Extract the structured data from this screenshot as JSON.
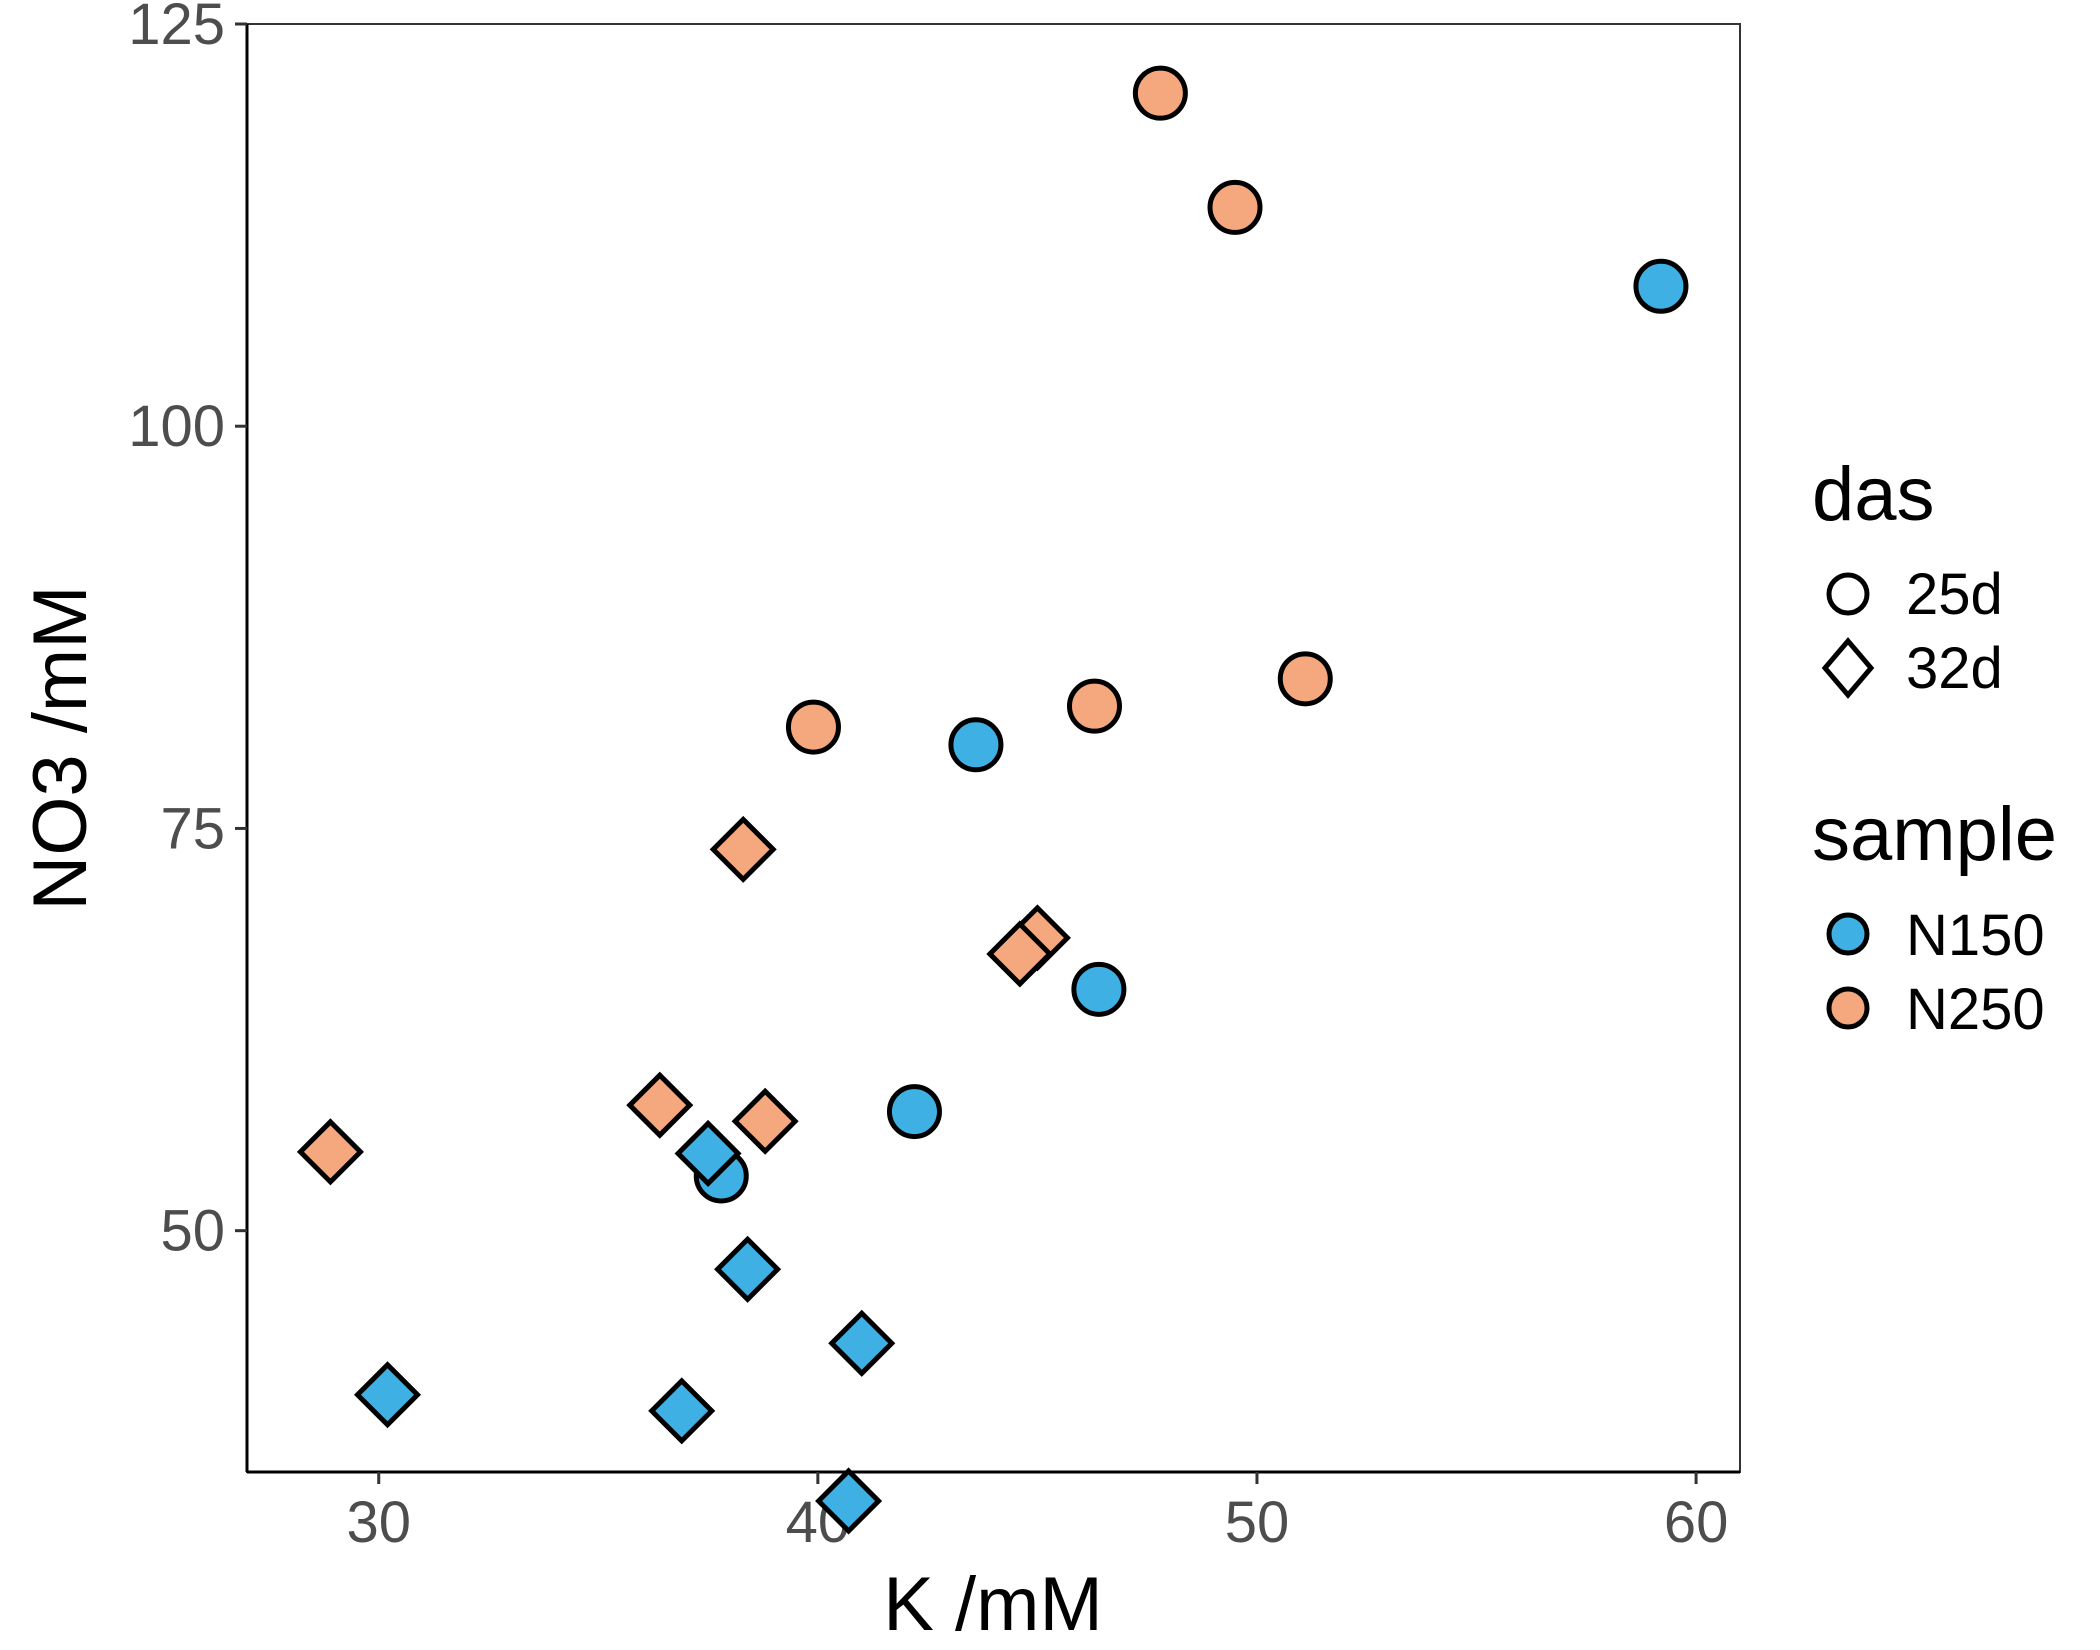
{
  "chart_data": {
    "type": "scatter",
    "xlabel": "K /mM",
    "ylabel": "NO3 /mM",
    "xlim": [
      27,
      61
    ],
    "ylim": [
      35,
      125
    ],
    "x_ticks": [
      30,
      40,
      50,
      60
    ],
    "y_ticks": [
      50,
      75,
      100,
      125
    ],
    "x_tick_labels": [
      "30",
      "40",
      "50",
      "60"
    ],
    "y_tick_labels": [
      "50",
      "75",
      "100",
      "125"
    ],
    "grid": false,
    "legend_placement": "right",
    "legend": {
      "das": {
        "title": "das",
        "entries": [
          {
            "label": "25d",
            "shape": "circle"
          },
          {
            "label": "32d",
            "shape": "diamond"
          }
        ]
      },
      "sample": {
        "title": "sample",
        "entries": [
          {
            "label": "N150",
            "color": "#3fb0e4"
          },
          {
            "label": "N250",
            "color": "#f5a87d"
          }
        ]
      }
    },
    "colors": {
      "N150": "#3fb0e4",
      "N250": "#f5a87d"
    },
    "points": [
      {
        "x": 47.8,
        "y": 120.7,
        "sample": "N250",
        "das": "25d"
      },
      {
        "x": 49.5,
        "y": 113.6,
        "sample": "N250",
        "das": "25d"
      },
      {
        "x": 59.2,
        "y": 108.7,
        "sample": "N150",
        "das": "25d"
      },
      {
        "x": 51.1,
        "y": 84.3,
        "sample": "N250",
        "das": "25d"
      },
      {
        "x": 46.3,
        "y": 82.6,
        "sample": "N250",
        "das": "25d"
      },
      {
        "x": 39.9,
        "y": 81.3,
        "sample": "N250",
        "das": "25d"
      },
      {
        "x": 43.6,
        "y": 80.2,
        "sample": "N150",
        "das": "25d"
      },
      {
        "x": 46.4,
        "y": 65.0,
        "sample": "N150",
        "das": "25d"
      },
      {
        "x": 42.2,
        "y": 57.4,
        "sample": "N150",
        "das": "25d"
      },
      {
        "x": 37.8,
        "y": 53.4,
        "sample": "N150",
        "das": "25d"
      },
      {
        "x": 38.3,
        "y": 73.7,
        "sample": "N250",
        "das": "32d"
      },
      {
        "x": 45.0,
        "y": 68.2,
        "sample": "N250",
        "das": "32d"
      },
      {
        "x": 44.6,
        "y": 67.2,
        "sample": "N250",
        "das": "32d"
      },
      {
        "x": 36.4,
        "y": 57.8,
        "sample": "N250",
        "das": "32d"
      },
      {
        "x": 38.8,
        "y": 56.8,
        "sample": "N250",
        "das": "32d"
      },
      {
        "x": 28.9,
        "y": 54.9,
        "sample": "N250",
        "das": "32d"
      },
      {
        "x": 37.5,
        "y": 54.8,
        "sample": "N150",
        "das": "32d"
      },
      {
        "x": 38.4,
        "y": 47.6,
        "sample": "N150",
        "das": "32d"
      },
      {
        "x": 41.0,
        "y": 43.0,
        "sample": "N150",
        "das": "32d"
      },
      {
        "x": 30.2,
        "y": 39.8,
        "sample": "N150",
        "das": "32d"
      },
      {
        "x": 36.9,
        "y": 38.8,
        "sample": "N150",
        "das": "32d"
      },
      {
        "x": 40.7,
        "y": 33.2,
        "sample": "N150",
        "das": "32d"
      }
    ]
  }
}
